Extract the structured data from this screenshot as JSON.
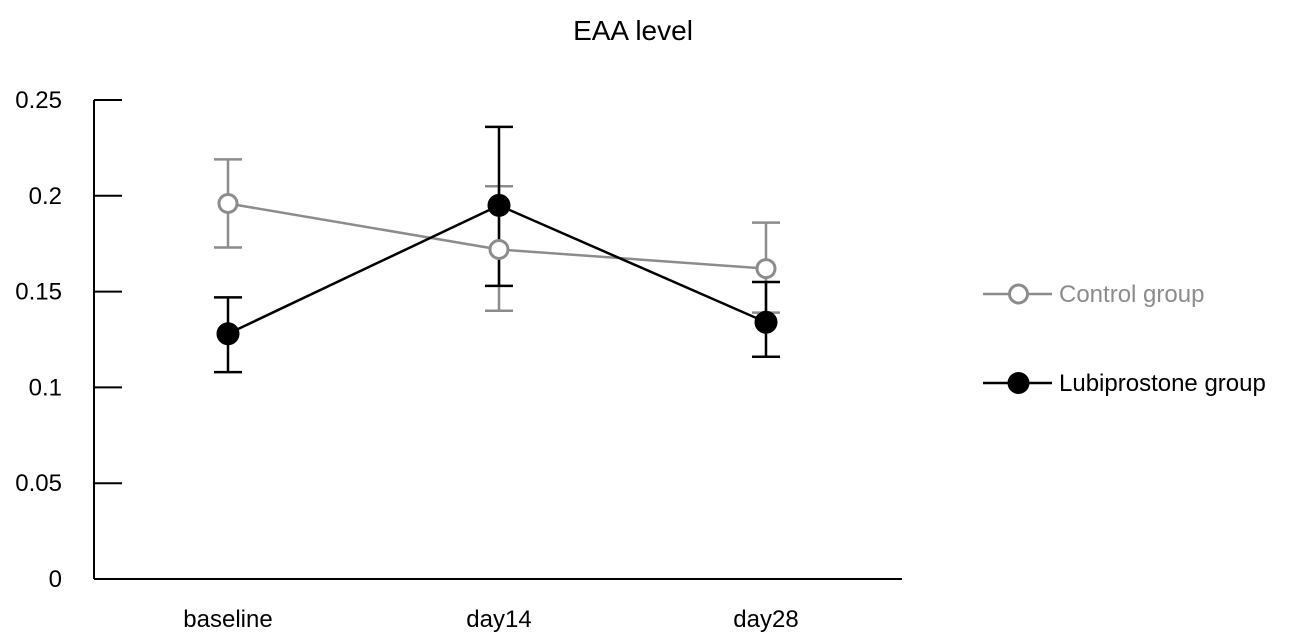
{
  "chart_data": {
    "type": "line",
    "title": "EAA level",
    "xlabel": "",
    "ylabel": "",
    "categories": [
      "baseline",
      "day14",
      "day28"
    ],
    "ylim": [
      0,
      0.25
    ],
    "yticks": [
      0,
      0.05,
      0.1,
      0.15,
      0.2,
      0.25
    ],
    "ytick_labels": [
      "0",
      "0.05",
      "0.1",
      "0.15",
      "0.2",
      "0.25"
    ],
    "grid": false,
    "legend_position": "right",
    "series": [
      {
        "name": "Control group",
        "color": "#8c8c8c",
        "marker": "open-circle",
        "values": [
          0.196,
          0.172,
          0.162
        ],
        "error_upper": [
          0.219,
          0.205,
          0.186
        ],
        "error_lower": [
          0.173,
          0.14,
          0.139
        ]
      },
      {
        "name": "Lubiprostone group",
        "color": "#000000",
        "marker": "filled-circle",
        "values": [
          0.128,
          0.195,
          0.134
        ],
        "error_upper": [
          0.147,
          0.236,
          0.155
        ],
        "error_lower": [
          0.108,
          0.153,
          0.116
        ]
      }
    ]
  }
}
